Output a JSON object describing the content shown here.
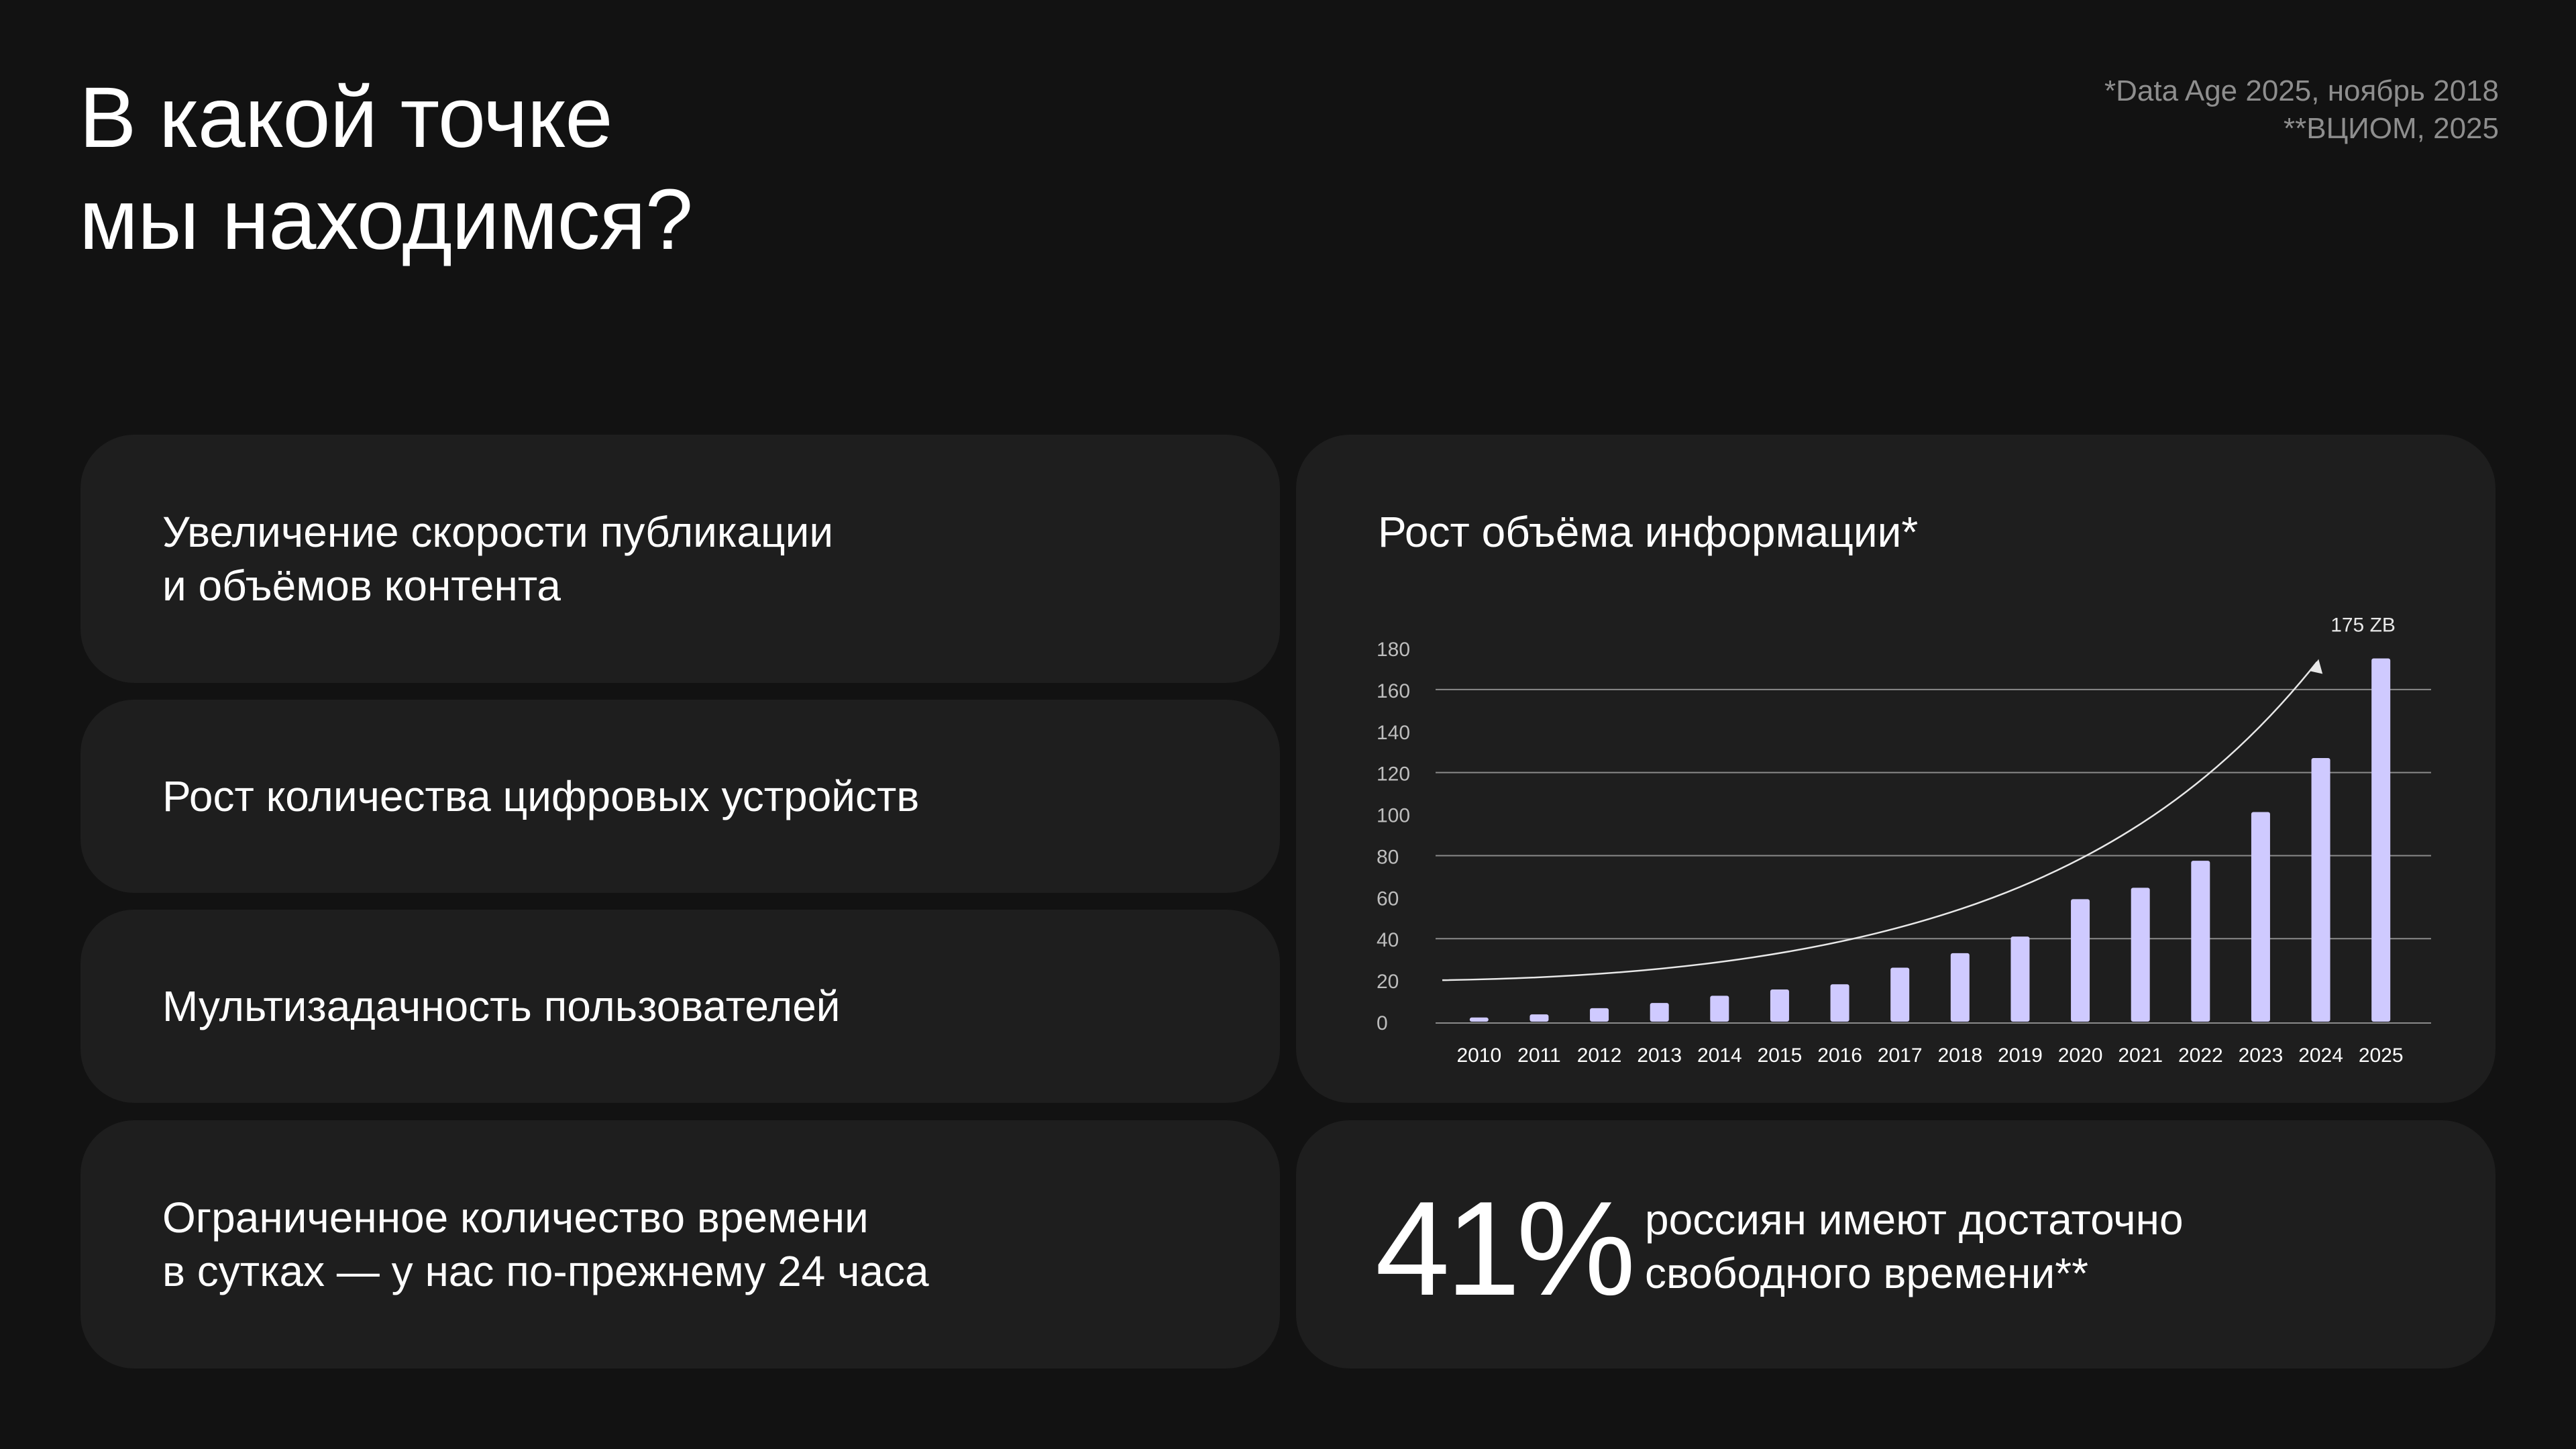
{
  "header": {
    "title_lines": [
      "В какой точке",
      "мы находимся?"
    ],
    "sources": [
      "*Data Age 2025, ноябрь 2018",
      "**ВЦИОМ, 2025"
    ]
  },
  "cards": {
    "publication": {
      "lines": [
        "Увеличение скорости публикации",
        "и объёмов контента"
      ]
    },
    "devices": {
      "lines": [
        "Рост количества цифровых устройств"
      ]
    },
    "multitasking": {
      "lines": [
        "Мультизадачность пользователей"
      ]
    },
    "time": {
      "lines": [
        "Ограниченное количество времени",
        "в сутках — у нас по-прежнему 24 часа"
      ]
    }
  },
  "stat": {
    "value": "41%",
    "lines": [
      "россиян имеют достаточно",
      "свободного времени**"
    ]
  },
  "colors": {
    "background": "#121212",
    "card": "#1e1e1e",
    "bar": "#cfcaff",
    "muted": "#8e8e8e"
  },
  "chart_data": {
    "type": "bar",
    "title": "Рост объёма информации*",
    "categories": [
      "2010",
      "2011",
      "2012",
      "2013",
      "2014",
      "2015",
      "2016",
      "2017",
      "2018",
      "2019",
      "2020",
      "2021",
      "2022",
      "2023",
      "2024",
      "2025"
    ],
    "values": [
      2,
      3.5,
      6.5,
      9,
      12.5,
      15.5,
      18,
      26,
      33,
      41,
      59,
      64.5,
      77.5,
      101,
      127,
      175
    ],
    "yticks": [
      0,
      20,
      40,
      60,
      80,
      100,
      120,
      140,
      160,
      180
    ],
    "ylim": [
      0,
      180
    ],
    "gridlines": [
      40,
      80,
      120,
      160
    ],
    "annotation": "175 ZB",
    "trend_arrow": true
  }
}
